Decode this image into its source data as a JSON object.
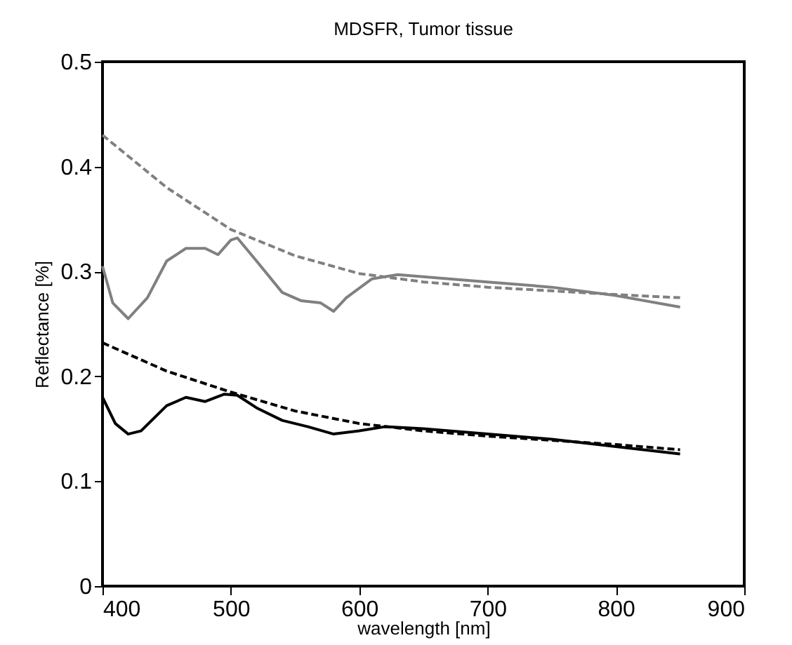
{
  "chart_data": {
    "type": "line",
    "title": "MDSFR, Tumor tissue",
    "xlabel": "wavelength [nm]",
    "ylabel": "Reflectance [%]",
    "xlim": [
      400,
      900
    ],
    "ylim": [
      0,
      0.5
    ],
    "xticks": [
      400,
      500,
      600,
      700,
      800,
      900
    ],
    "yticks": [
      0,
      0.1,
      0.2,
      0.3,
      0.4,
      0.5
    ],
    "grid": false,
    "legend": false,
    "marker": "none",
    "series": [
      {
        "color": "#808080",
        "line_style": "dashed",
        "x": [
          400,
          450,
          500,
          550,
          600,
          650,
          700,
          800,
          850
        ],
        "values": [
          0.43,
          0.38,
          0.34,
          0.315,
          0.298,
          0.29,
          0.285,
          0.278,
          0.275
        ]
      },
      {
        "color": "#808080",
        "line_style": "solid",
        "x": [
          400,
          408,
          420,
          435,
          450,
          465,
          480,
          490,
          500,
          505,
          520,
          540,
          555,
          570,
          580,
          590,
          610,
          630,
          650,
          700,
          750,
          800,
          850
        ],
        "values": [
          0.305,
          0.27,
          0.255,
          0.275,
          0.31,
          0.322,
          0.322,
          0.316,
          0.33,
          0.332,
          0.31,
          0.28,
          0.272,
          0.27,
          0.262,
          0.275,
          0.293,
          0.297,
          0.295,
          0.29,
          0.285,
          0.277,
          0.266
        ]
      },
      {
        "color": "#000000",
        "line_style": "dashed",
        "x": [
          400,
          450,
          500,
          550,
          600,
          650,
          700,
          800,
          850
        ],
        "values": [
          0.232,
          0.205,
          0.185,
          0.167,
          0.155,
          0.148,
          0.143,
          0.135,
          0.13
        ]
      },
      {
        "color": "#000000",
        "line_style": "solid",
        "x": [
          400,
          410,
          420,
          430,
          450,
          465,
          480,
          495,
          505,
          520,
          540,
          560,
          580,
          600,
          620,
          650,
          700,
          750,
          800,
          850
        ],
        "values": [
          0.18,
          0.155,
          0.145,
          0.148,
          0.172,
          0.18,
          0.176,
          0.183,
          0.182,
          0.17,
          0.158,
          0.152,
          0.145,
          0.148,
          0.152,
          0.15,
          0.145,
          0.14,
          0.133,
          0.126
        ]
      }
    ]
  }
}
